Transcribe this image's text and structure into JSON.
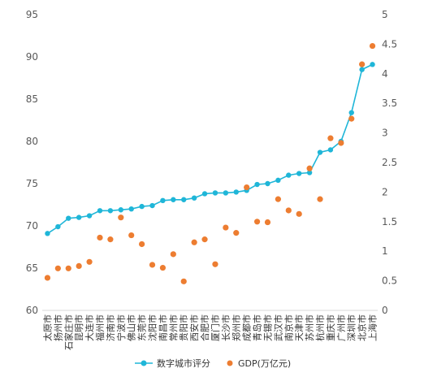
{
  "chart_data": {
    "type": "line",
    "categories": [
      "太原市",
      "扬州市",
      "石家庄市",
      "昆明市",
      "大连市",
      "福州市",
      "济南市",
      "宁波市",
      "佛山市",
      "东莞市",
      "沈阳市",
      "南昌市",
      "常州市",
      "贵阳市",
      "西安市",
      "合肥市",
      "厦门市",
      "长沙市",
      "郑州市",
      "成都市",
      "青岛市",
      "无锡市",
      "武汉市",
      "南京市",
      "天津市",
      "苏州市",
      "杭州市",
      "重庆市",
      "广州市",
      "深圳市",
      "北京市",
      "上海市"
    ],
    "series": [
      {
        "name": "数字城市评分",
        "type": "line",
        "axis": "left",
        "color": "#1fb6d8",
        "values": [
          69.1,
          69.9,
          70.9,
          71.0,
          71.2,
          71.8,
          71.8,
          71.9,
          72.0,
          72.3,
          72.4,
          73.0,
          73.1,
          73.1,
          73.3,
          73.8,
          73.9,
          73.9,
          74.0,
          74.2,
          74.9,
          75.0,
          75.4,
          76.0,
          76.2,
          76.3,
          78.7,
          79.0,
          80.0,
          83.4,
          88.5,
          89.1
        ]
      },
      {
        "name": "GDP(万亿元)",
        "type": "scatter",
        "axis": "right",
        "color": "#ed7d31",
        "values": [
          0.55,
          0.71,
          0.71,
          0.75,
          0.82,
          1.23,
          1.2,
          1.57,
          1.27,
          1.12,
          0.77,
          0.72,
          0.95,
          0.49,
          1.15,
          1.2,
          0.78,
          1.4,
          1.31,
          2.08,
          1.5,
          1.49,
          1.88,
          1.69,
          1.63,
          2.4,
          1.88,
          2.91,
          2.83,
          3.24,
          4.16,
          4.47
        ]
      }
    ],
    "y_left": {
      "min": 60,
      "max": 95,
      "ticks": [
        "60",
        "65",
        "70",
        "75",
        "80",
        "85",
        "90",
        "95"
      ]
    },
    "y_right": {
      "min": 0,
      "max": 5,
      "ticks": [
        "0",
        "0.5",
        "1",
        "1.5",
        "2",
        "2.5",
        "3",
        "3.5",
        "4",
        "4.5",
        "5"
      ]
    },
    "grid": false,
    "legend_position": "bottom"
  }
}
